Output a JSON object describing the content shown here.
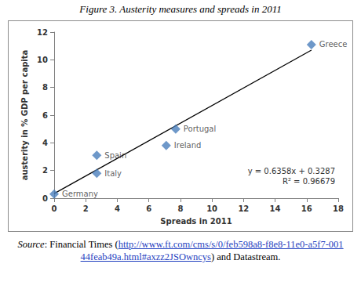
{
  "chart_data": {
    "type": "scatter",
    "title": "Figure 3. Austerity measures and spreads in 2011",
    "x_label": "Spreads in 2011",
    "y_label": "austerity in % GDP per capita",
    "x": [
      0,
      2.7,
      2.7,
      7.1,
      7.7,
      16.3
    ],
    "values": [
      0.3,
      3.1,
      1.8,
      3.8,
      5.0,
      11.1
    ],
    "point_labels": [
      "Germany",
      "Spain",
      "Italy",
      "Ireland",
      "Portugal",
      "Greece"
    ],
    "color": "#4a7ebb",
    "marker": "diamond",
    "trendline": {
      "x": [
        0,
        16.3
      ],
      "values": [
        0.33,
        10.7
      ],
      "color": "#000000",
      "line_style": "solid"
    },
    "annotations": [
      "y = 0.6358x + 0.3287",
      "R² = 0.96679"
    ],
    "xlim": [
      0,
      18
    ],
    "xticks": [
      0,
      2,
      4,
      6,
      8,
      10,
      12,
      14,
      16,
      18
    ],
    "ylim": [
      0,
      12
    ],
    "yticks": [
      0,
      2,
      4,
      6,
      8,
      10,
      12
    ],
    "grid": false,
    "source": {
      "label": "Source",
      "text_before": ": Financial Times (",
      "link": "http://www.ft.com/cms/s/0/feb598a8-f8e8-11e0-a5f7-00144feab49a.html#axzz2JSOwncys",
      "text_after": ") and Datastream."
    }
  }
}
